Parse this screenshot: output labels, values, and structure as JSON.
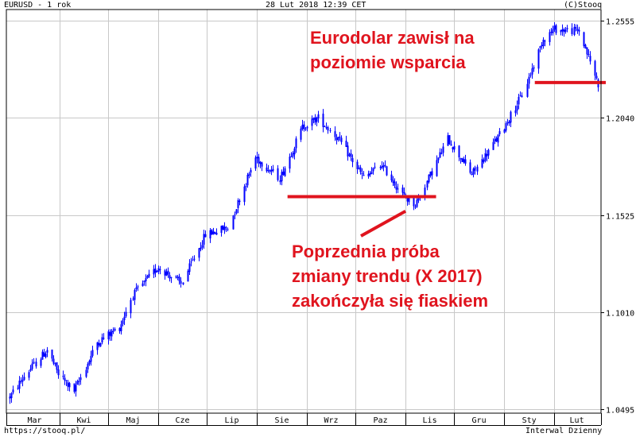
{
  "header": {
    "left": "EURUSD - 1 rok",
    "center": "28 Lut 2018 12:39 CET",
    "right": "(C)Stooq"
  },
  "footer": {
    "left": "https://stooq.pl/",
    "right": "Interwal Dzienny"
  },
  "chart_data": {
    "type": "candlestick",
    "y_ticks": [
      "1.0495",
      "1.1010",
      "1.1525",
      "1.2040",
      "1.2555"
    ],
    "ylim": [
      1.0495,
      1.2555
    ],
    "month_labels": [
      "Mar",
      "Kwi",
      "Maj",
      "Cze",
      "Lip",
      "Sie",
      "Wrz",
      "Paz",
      "Lis",
      "Gru",
      "Sty",
      "Lut"
    ],
    "x_range": [
      "2017-03-01",
      "2018-02-28"
    ],
    "grid": true,
    "price_path": [
      [
        "2017-03-01",
        1.056
      ],
      [
        "2017-03-10",
        1.067
      ],
      [
        "2017-03-24",
        1.081
      ],
      [
        "2017-03-31",
        1.068
      ],
      [
        "2017-04-10",
        1.059
      ],
      [
        "2017-04-24",
        1.085
      ],
      [
        "2017-05-08",
        1.093
      ],
      [
        "2017-05-16",
        1.11
      ],
      [
        "2017-06-01",
        1.125
      ],
      [
        "2017-06-15",
        1.116
      ],
      [
        "2017-06-30",
        1.142
      ],
      [
        "2017-07-14",
        1.146
      ],
      [
        "2017-07-31",
        1.183
      ],
      [
        "2017-08-15",
        1.172
      ],
      [
        "2017-08-29",
        1.199
      ],
      [
        "2017-09-08",
        1.204
      ],
      [
        "2017-09-20",
        1.193
      ],
      [
        "2017-10-06",
        1.172
      ],
      [
        "2017-10-17",
        1.179
      ],
      [
        "2017-10-31",
        1.162
      ],
      [
        "2017-11-07",
        1.158
      ],
      [
        "2017-11-27",
        1.193
      ],
      [
        "2017-12-12",
        1.174
      ],
      [
        "2017-12-29",
        1.195
      ],
      [
        "2018-01-12",
        1.216
      ],
      [
        "2018-01-25",
        1.246
      ],
      [
        "2018-02-01",
        1.251
      ],
      [
        "2018-02-16",
        1.25
      ],
      [
        "2018-02-28",
        1.222
      ]
    ],
    "support_levels": [
      {
        "value": 1.1622,
        "from": "2017-08-20",
        "to": "2017-11-15"
      },
      {
        "value": 1.2227,
        "from": "2018-01-20",
        "to": "2018-02-28"
      }
    ],
    "annotations": [
      {
        "lines": [
          "Eurodolar zawisł na",
          "poziomie wsparcia"
        ]
      },
      {
        "lines": [
          "Poprzednia próba",
          "zmiany trendu (X 2017)",
          "zakończyła się fiaskiem"
        ]
      }
    ],
    "colors": {
      "candles": "#0000ff",
      "annotation": "#e0141e",
      "grid": "#c8c8c8"
    }
  }
}
